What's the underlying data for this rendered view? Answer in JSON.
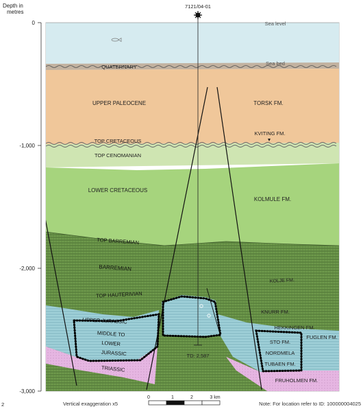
{
  "axis": {
    "label_line1": "Depth in",
    "label_line2": "metres",
    "ticks": [
      "0",
      "-1,000",
      "-2,000",
      "-3,000"
    ]
  },
  "well": {
    "name": "7121/04-01",
    "td_label": "TD: 2,587"
  },
  "surfaces": {
    "sea_level": "Sea level",
    "sea_bed": "Sea bed"
  },
  "units_left": {
    "quaternary": "QUATERNARY",
    "upper_paleocene": "UPPER PALEOCENE",
    "top_cretaceous": "TOP CRETACEOUS",
    "top_cenomanian": "TOP CENOMANIAN",
    "lower_cretaceous": "LOWER CRETACEOUS",
    "top_barremian": "TOP BARREMIAN",
    "barremian": "BARREMIAN",
    "top_hauterivian": "TOP HAUTERIVIAN",
    "upper_jurassic": "UPPER JURASSIC",
    "middle_to": "MIDDLE TO",
    "lower": "LOWER",
    "jurassic": "JURASSIC",
    "triassic": "TRIASSIC"
  },
  "formations": {
    "torsk": "TORSK FM.",
    "kviting": "KVITING FM.",
    "kolmule": "KOLMULE FM.",
    "kolje": "KOLJE FM.",
    "knurr": "KNURR FM.",
    "hekkingen": "HEKKINGEN FM.",
    "fuglen": "FUGLEN FM.",
    "sto": "STO FM.",
    "nordmela": "NORDMELA",
    "tubaen": "TUBAEN FM.",
    "fruholmen": "FRUHOLMEN FM."
  },
  "footer": {
    "exaggeration": "Vertical exaggeration x5",
    "scale_ticks": [
      "0",
      "1",
      "2",
      "3 km"
    ],
    "note": "Note: For location refer to ID: 100000004025"
  },
  "colors": {
    "sea": "#d6ebf0",
    "seabed": "#c2b2a0",
    "paleocene": "#f0c79a",
    "cenomanian": "#cfe5b2",
    "lower_cretaceous": "#a6d47d",
    "barremian": "#6f9a4c",
    "jurassic": "#a2d4dc",
    "triassic": "#e7b8e4",
    "trap_outline": "#000000"
  }
}
